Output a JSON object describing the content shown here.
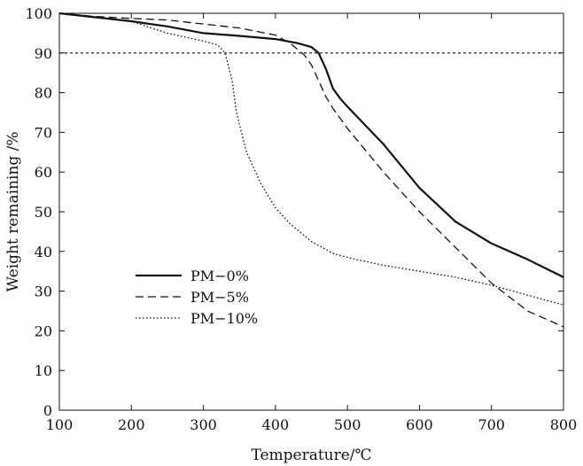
{
  "chart_data": {
    "type": "line",
    "title": "",
    "xlabel": "Temperature/℃",
    "ylabel": "Weight remaining /%",
    "xlim": [
      100,
      800
    ],
    "ylim": [
      0,
      100
    ],
    "xticks": [
      100,
      200,
      300,
      400,
      500,
      600,
      700,
      800
    ],
    "yticks": [
      0,
      10,
      20,
      30,
      40,
      50,
      60,
      70,
      80,
      90,
      100
    ],
    "grid": false,
    "legend_position": "middle-left",
    "reference_line": {
      "y": 90,
      "style": "dotted"
    },
    "series": [
      {
        "name": "PM−0%",
        "style": "solid",
        "x": [
          100,
          150,
          200,
          250,
          300,
          350,
          400,
          430,
          450,
          460,
          470,
          480,
          490,
          500,
          550,
          600,
          650,
          700,
          750,
          800
        ],
        "y": [
          100,
          99,
          98,
          96.7,
          95,
          94.3,
          93.5,
          92.5,
          91.5,
          90,
          86,
          81,
          78.5,
          76.5,
          67,
          56,
          47.5,
          42,
          38,
          33.5
        ]
      },
      {
        "name": "PM−5%",
        "style": "dashed",
        "x": [
          100,
          150,
          200,
          250,
          300,
          350,
          400,
          420,
          440,
          450,
          460,
          470,
          480,
          500,
          550,
          600,
          650,
          700,
          750,
          800
        ],
        "y": [
          100,
          99.2,
          98.7,
          98.3,
          97.3,
          96.3,
          94.5,
          92.5,
          89.5,
          87,
          83,
          79,
          76,
          71,
          60,
          50,
          41,
          32,
          25,
          21
        ]
      },
      {
        "name": "PM−10%",
        "style": "dotted",
        "x": [
          100,
          150,
          200,
          250,
          300,
          320,
          330,
          340,
          345,
          350,
          360,
          380,
          400,
          420,
          450,
          480,
          500,
          550,
          600,
          650,
          700,
          750,
          800
        ],
        "y": [
          100,
          99,
          98,
          95,
          93,
          92,
          90,
          83,
          76,
          72,
          65,
          57,
          51,
          47,
          42.5,
          39.5,
          38.5,
          36.5,
          35,
          33.5,
          31.5,
          29,
          26.5
        ]
      }
    ]
  }
}
